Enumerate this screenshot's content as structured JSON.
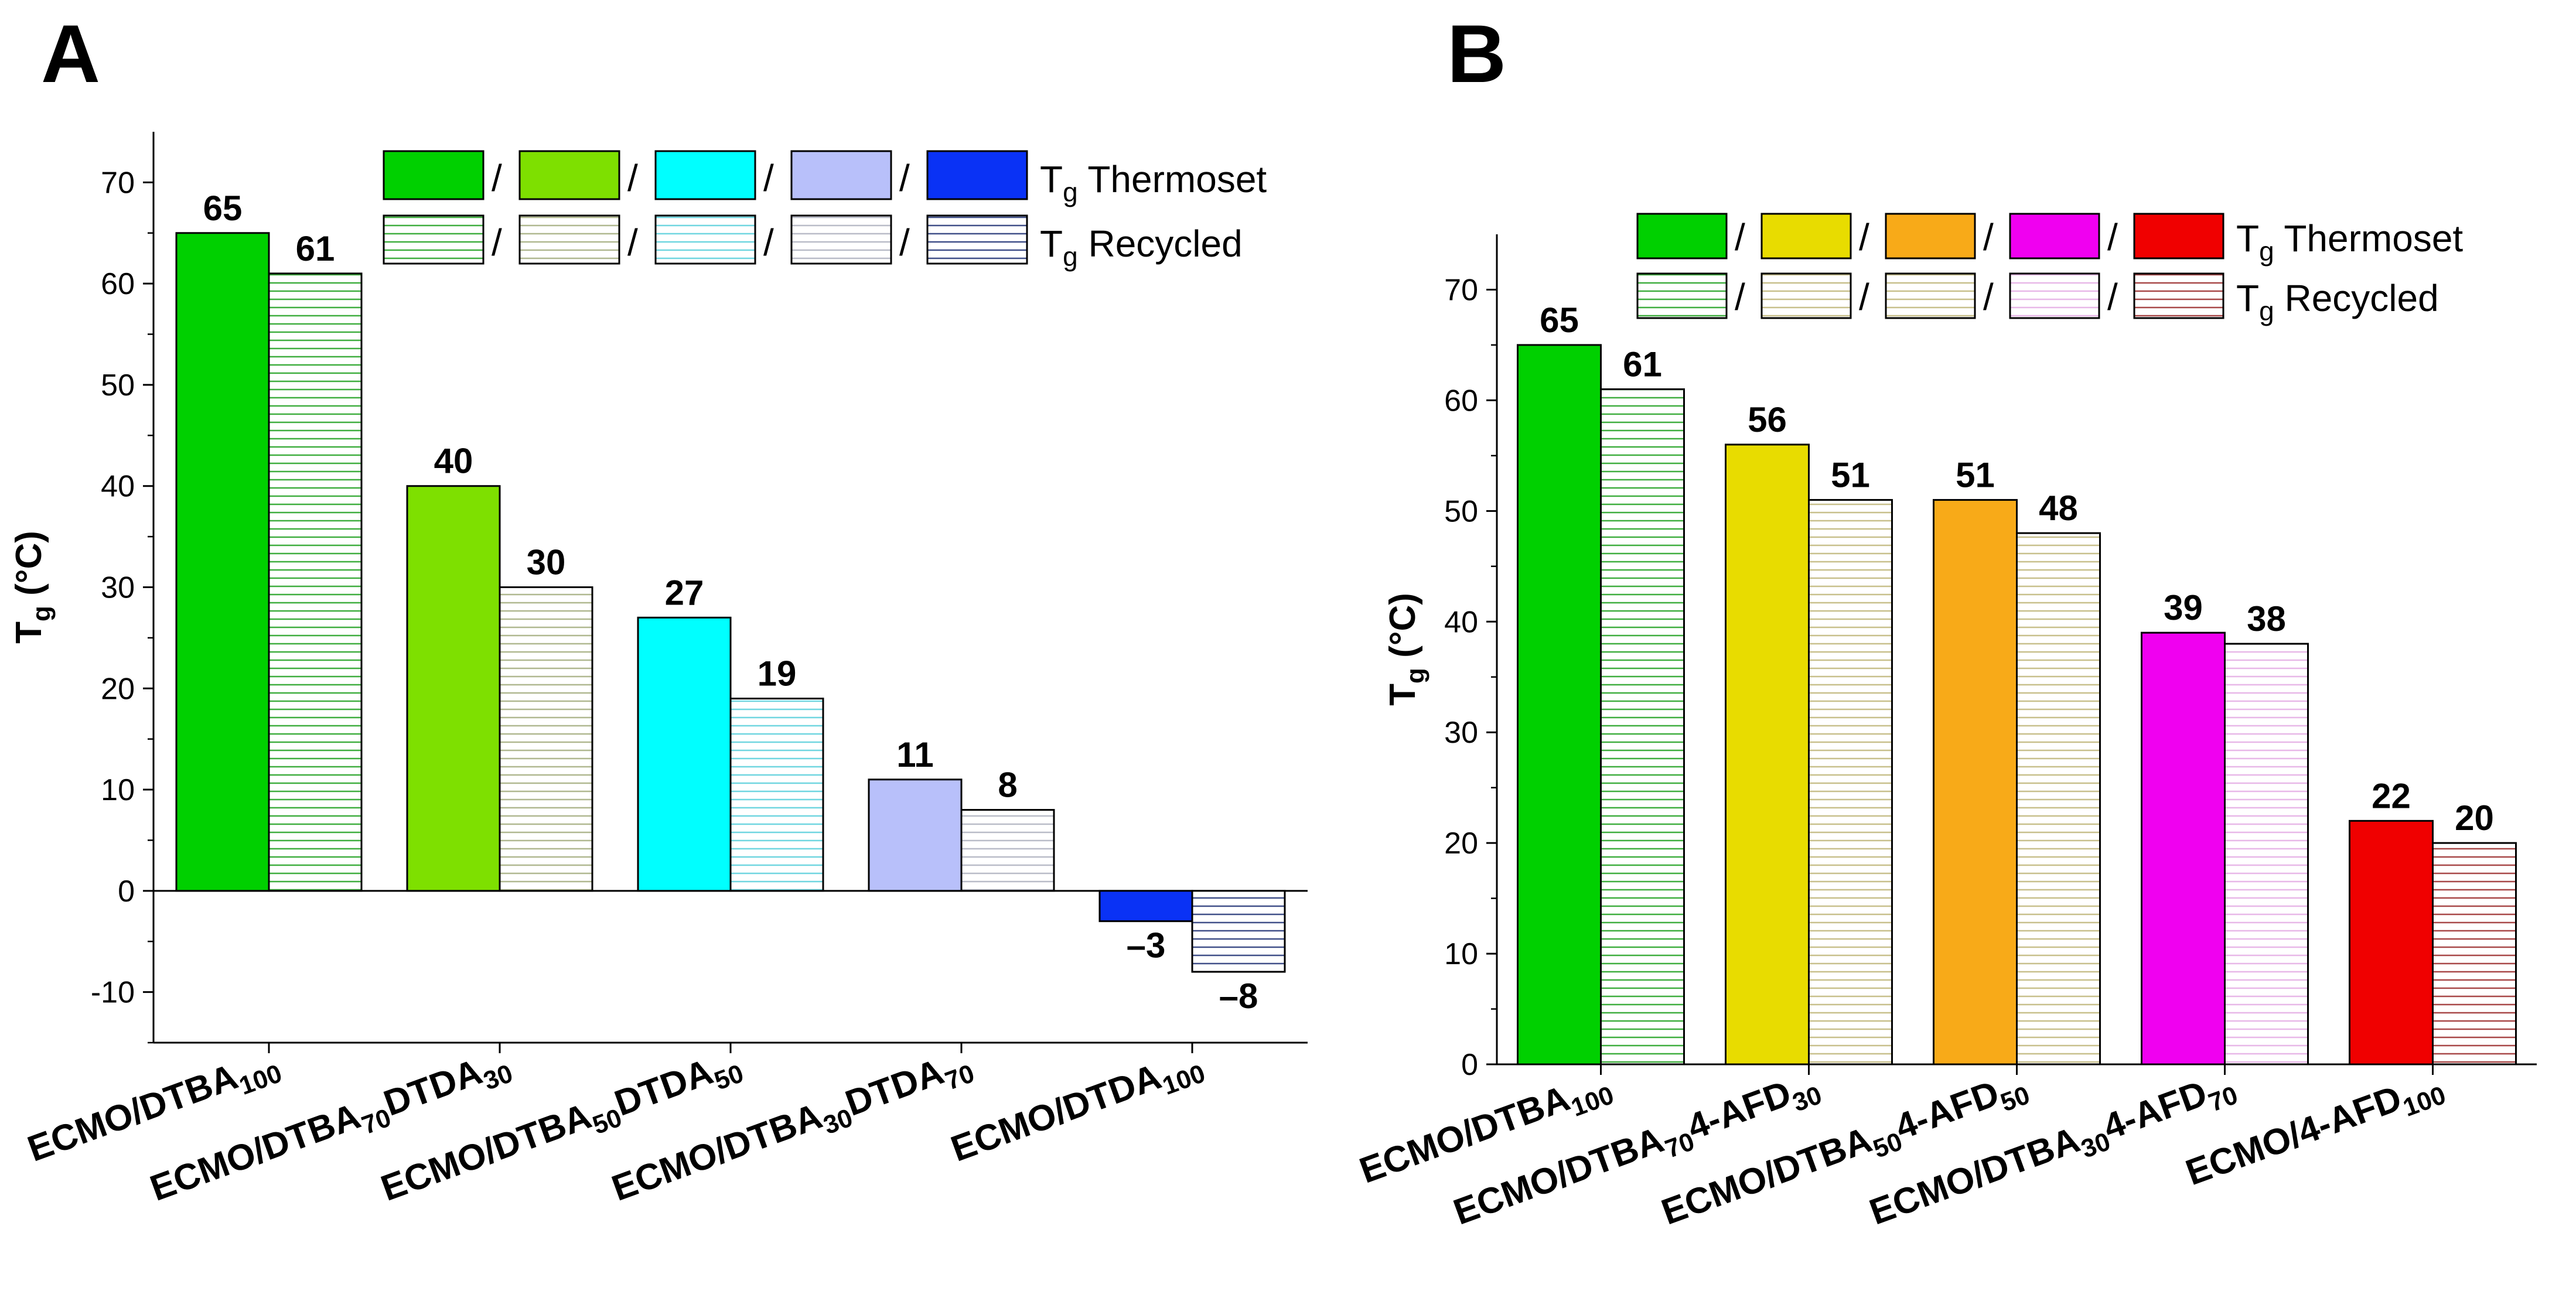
{
  "panels": {
    "a": {
      "letter": "A"
    },
    "b": {
      "letter": "B"
    }
  },
  "legend": {
    "separator": "/",
    "row1_label_main": "T",
    "row1_label_sub": "g",
    "row1_label_rest": " Thermoset",
    "row2_label_main": "T",
    "row2_label_sub": "g",
    "row2_label_rest": " Recycled"
  },
  "axis_title": {
    "main": "T",
    "sub": "g",
    "rest": " (°C)"
  },
  "chart_data": [
    {
      "type": "bar",
      "panel": "A",
      "ylabel": "Tg (°C)",
      "ylim": [
        -15,
        75
      ],
      "yticks": [
        -10,
        0,
        10,
        20,
        30,
        40,
        50,
        60,
        70
      ],
      "grid": false,
      "legend_placement": "top-right",
      "categories": [
        {
          "base": "ECMO/DTBA",
          "sub1": "100",
          "mid": "",
          "sub2": ""
        },
        {
          "base": "ECMO/DTBA",
          "sub1": "70",
          "mid": "DTDA",
          "sub2": "30"
        },
        {
          "base": "ECMO/DTBA",
          "sub1": "50",
          "mid": "DTDA",
          "sub2": "50"
        },
        {
          "base": "ECMO/DTBA",
          "sub1": "30",
          "mid": "DTDA",
          "sub2": "70"
        },
        {
          "base": "ECMO/DTDA",
          "sub1": "100",
          "mid": "",
          "sub2": ""
        }
      ],
      "series": [
        {
          "name": "Tg Thermoset",
          "values": [
            65,
            40,
            27,
            11,
            -3
          ],
          "labels": [
            "65",
            "40",
            "27",
            "11",
            "–3"
          ]
        },
        {
          "name": "Tg Recycled",
          "values": [
            61,
            30,
            19,
            8,
            -8
          ],
          "labels": [
            "61",
            "30",
            "19",
            "8",
            "–8"
          ]
        }
      ],
      "colors": [
        "#00d000",
        "#7ee000",
        "#00ffff",
        "#b8c0fa",
        "#0a32f5"
      ],
      "stripe_colors": [
        "#3fae3f",
        "#b0b890",
        "#70d6e0",
        "#b9bcc8",
        "#404f88"
      ]
    },
    {
      "type": "bar",
      "panel": "B",
      "ylabel": "Tg (°C)",
      "ylim": [
        0,
        75
      ],
      "yticks": [
        0,
        10,
        20,
        30,
        40,
        50,
        60,
        70
      ],
      "grid": false,
      "legend_placement": "top-right",
      "categories": [
        {
          "base": "ECMO/DTBA",
          "sub1": "100",
          "mid": "",
          "sub2": ""
        },
        {
          "base": "ECMO/DTBA",
          "sub1": "70",
          "mid": "4-AFD",
          "sub2": "30"
        },
        {
          "base": "ECMO/DTBA",
          "sub1": "50",
          "mid": "4-AFD",
          "sub2": "50"
        },
        {
          "base": "ECMO/DTBA",
          "sub1": "30",
          "mid": "4-AFD",
          "sub2": "70"
        },
        {
          "base": "ECMO/4-AFD",
          "sub1": "100",
          "mid": "",
          "sub2": ""
        }
      ],
      "series": [
        {
          "name": "Tg Thermoset",
          "values": [
            65,
            56,
            51,
            39,
            22
          ],
          "labels": [
            "65",
            "56",
            "51",
            "39",
            "22"
          ]
        },
        {
          "name": "Tg Recycled",
          "values": [
            61,
            51,
            48,
            38,
            20
          ],
          "labels": [
            "61",
            "51",
            "48",
            "38",
            "20"
          ]
        }
      ],
      "colors": [
        "#00d000",
        "#e8dc00",
        "#f8aa18",
        "#f000f0",
        "#f00000"
      ],
      "stripe_colors": [
        "#3fae3f",
        "#c8c08c",
        "#c8c08c",
        "#e8b8e8",
        "#a84848"
      ]
    }
  ]
}
